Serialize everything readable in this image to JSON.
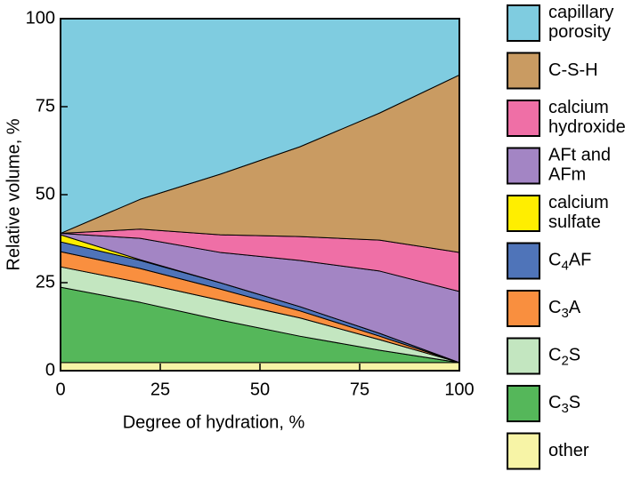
{
  "chart_data": {
    "type": "stacked_area",
    "xlabel": "Degree of hydration, %",
    "ylabel": "Relative volume, %",
    "x": [
      0,
      20,
      40,
      60,
      80,
      100
    ],
    "xlim": [
      0,
      100
    ],
    "xticks": [
      0,
      25,
      50,
      75,
      100
    ],
    "ylim": [
      0,
      100
    ],
    "yticks": [
      0,
      25,
      50,
      75,
      100
    ],
    "series": [
      {
        "name": "other",
        "color": "#f7f4a6",
        "values": [
          2.3,
          2.3,
          2.3,
          2.3,
          2.3,
          2.3
        ]
      },
      {
        "name": "C3S",
        "color": "#55b75a",
        "values": [
          21.4,
          17.1,
          12.1,
          7.5,
          3.5,
          0
        ]
      },
      {
        "name": "C2S",
        "color": "#c3e6c0",
        "values": [
          5.8,
          5.6,
          5.6,
          5.2,
          3.0,
          0
        ]
      },
      {
        "name": "C3A",
        "color": "#f98f3f",
        "values": [
          4.3,
          4.0,
          3.2,
          2.0,
          1.0,
          0
        ]
      },
      {
        "name": "C4AF",
        "color": "#4f74b9",
        "values": [
          2.8,
          2.3,
          1.8,
          1.2,
          0.8,
          0
        ]
      },
      {
        "name": "calcium sulfate",
        "color": "#ffee00",
        "values": [
          2.0,
          0.2,
          0,
          0,
          0,
          0
        ]
      },
      {
        "name": "AFt and AFm",
        "color": "#a385c4",
        "values": [
          0.4,
          6.1,
          8.6,
          13.1,
          17.7,
          20.2
        ]
      },
      {
        "name": "calcium hydroxide",
        "color": "#ef6fa6",
        "values": [
          0,
          2.6,
          5.0,
          6.8,
          8.8,
          11.1
        ]
      },
      {
        "name": "C-S-H",
        "color": "#c99b62",
        "values": [
          0,
          8.5,
          17.2,
          25.5,
          36.1,
          50.4
        ]
      },
      {
        "name": "capillary porosity",
        "color": "#7fcce0",
        "values": [
          61,
          51.3,
          44.2,
          36.4,
          26.8,
          16
        ]
      }
    ]
  }
}
